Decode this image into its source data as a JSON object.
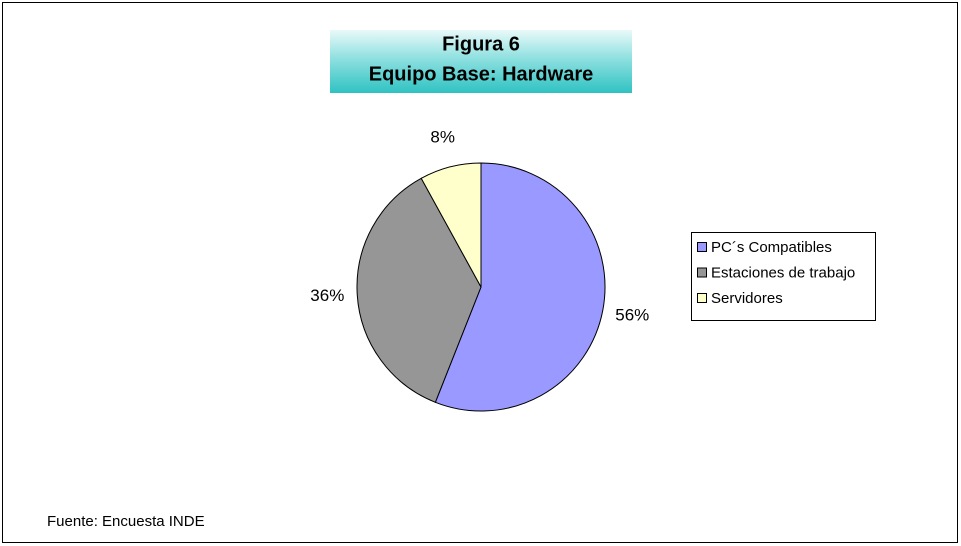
{
  "chart_data": {
    "type": "pie",
    "title": "Figura 6",
    "subtitle": "Equipo Base: Hardware",
    "categories": [
      "PC´s Compatibles",
      "Estaciones de trabajo",
      "Servidores"
    ],
    "values": [
      56,
      36,
      8
    ],
    "value_labels": [
      "56%",
      "36%",
      "8%"
    ],
    "colors": [
      "#9999ff",
      "#969696",
      "#ffffcc"
    ],
    "legend": "right",
    "source": "Fuente:  Encuesta INDE"
  }
}
